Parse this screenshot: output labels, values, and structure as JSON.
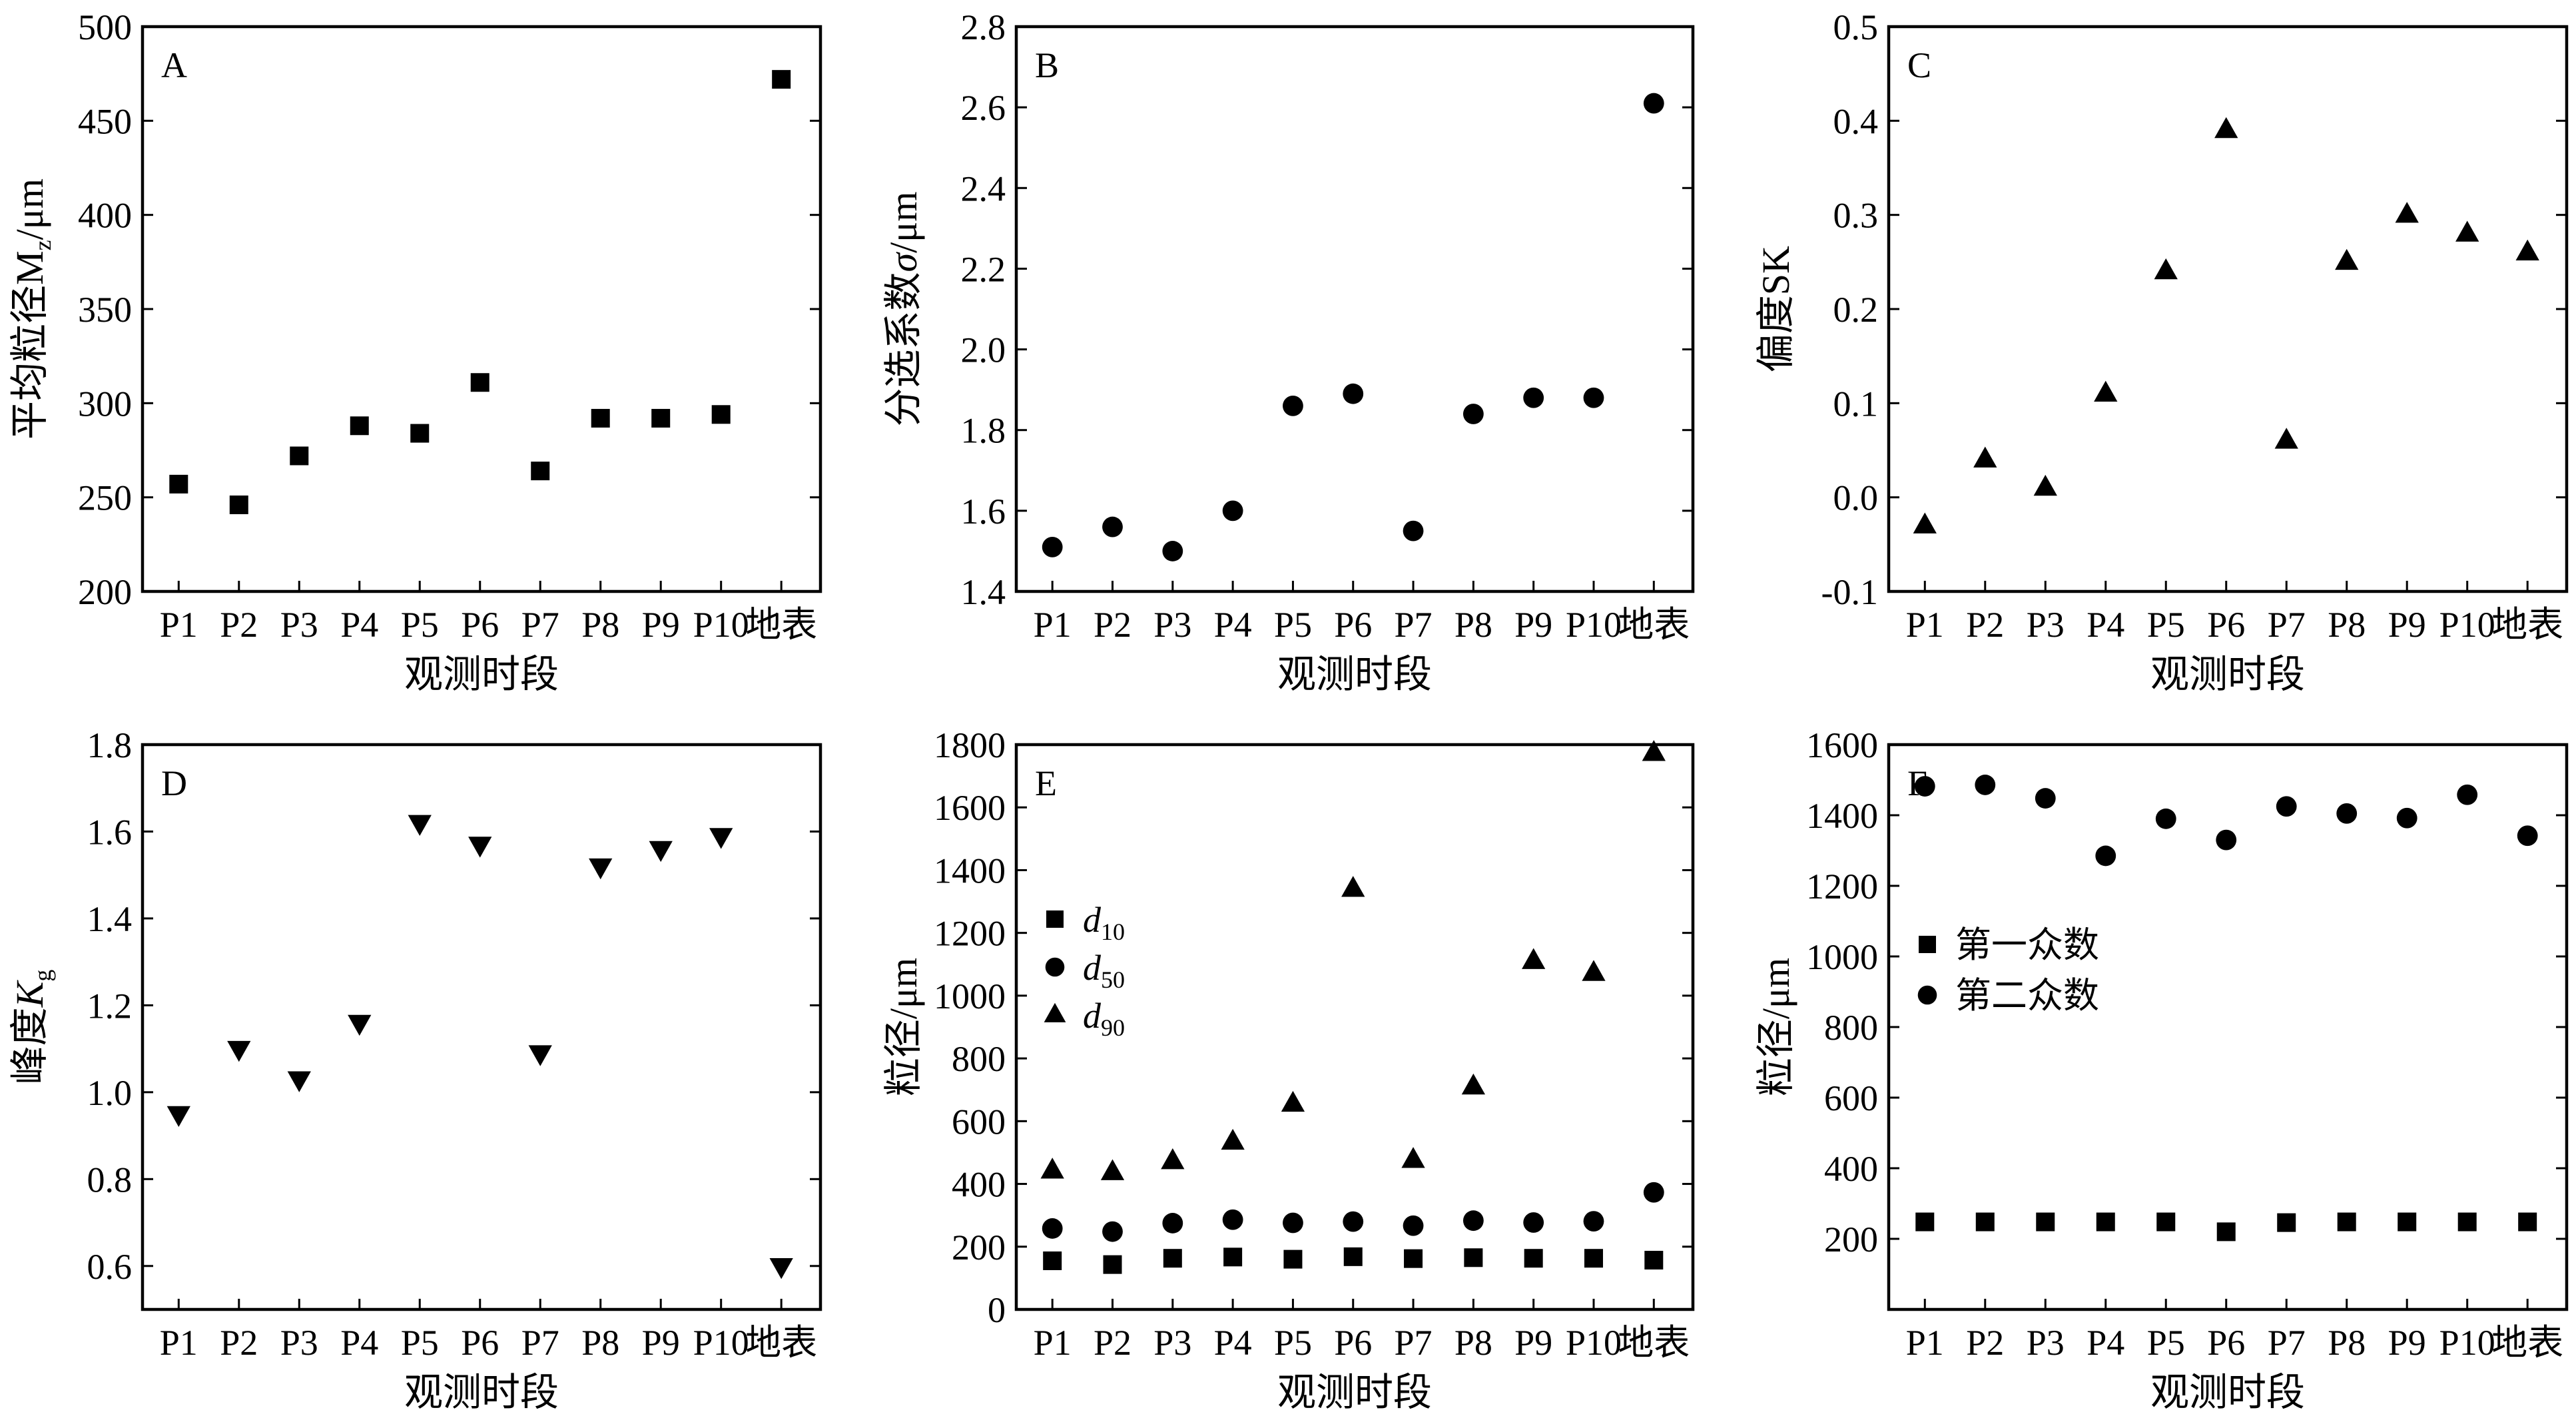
{
  "chart_data": [
    {
      "type": "scatter",
      "panel": "A",
      "ylabel_prefix": "平均粒径M",
      "ylabel_sub": "z",
      "ylabel_suffix": "/μm",
      "xlabel": "观测时段",
      "categories": [
        "P1",
        "P2",
        "P3",
        "P4",
        "P5",
        "P6",
        "P7",
        "P8",
        "P9",
        "P10",
        "地表"
      ],
      "ylim": [
        200,
        500
      ],
      "yticks": [
        "200",
        "250",
        "300",
        "350",
        "400",
        "450",
        "500"
      ],
      "series": [
        {
          "marker": "square",
          "values": [
            257,
            246,
            272,
            288,
            284,
            311,
            264,
            292,
            292,
            294,
            472
          ]
        }
      ]
    },
    {
      "type": "scatter",
      "panel": "B",
      "ylabel_prefix": "分选系数",
      "ylabel_italic": "σ",
      "ylabel_suffix": "/μm",
      "xlabel": "观测时段",
      "categories": [
        "P1",
        "P2",
        "P3",
        "P4",
        "P5",
        "P6",
        "P7",
        "P8",
        "P9",
        "P10",
        "地表"
      ],
      "ylim": [
        1.4,
        2.8
      ],
      "yticks": [
        "1.4",
        "1.6",
        "1.8",
        "2.0",
        "2.2",
        "2.4",
        "2.6",
        "2.8"
      ],
      "series": [
        {
          "marker": "circle",
          "values": [
            1.51,
            1.56,
            1.5,
            1.6,
            1.86,
            1.89,
            1.55,
            1.84,
            1.88,
            1.88,
            2.61
          ]
        }
      ]
    },
    {
      "type": "scatter",
      "panel": "C",
      "ylabel_prefix": "偏度SK",
      "xlabel": "观测时段",
      "categories": [
        "P1",
        "P2",
        "P3",
        "P4",
        "P5",
        "P6",
        "P7",
        "P8",
        "P9",
        "P10",
        "地表"
      ],
      "ylim": [
        -0.1,
        0.5
      ],
      "yticks": [
        "-0.1",
        "0.0",
        "0.1",
        "0.2",
        "0.3",
        "0.4",
        "0.5"
      ],
      "series": [
        {
          "marker": "triangle-up",
          "values": [
            -0.03,
            0.04,
            0.01,
            0.11,
            0.24,
            0.39,
            0.06,
            0.25,
            0.3,
            0.28,
            0.26
          ]
        }
      ]
    },
    {
      "type": "scatter",
      "panel": "D",
      "ylabel_prefix": "峰度",
      "ylabel_italic": "K",
      "ylabel_sub": "g",
      "xlabel": "观测时段",
      "categories": [
        "P1",
        "P2",
        "P3",
        "P4",
        "P5",
        "P6",
        "P7",
        "P8",
        "P9",
        "P10",
        "地表"
      ],
      "ylim": [
        0.5,
        1.8
      ],
      "yticks": [
        "0.6",
        "0.8",
        "1.0",
        "1.2",
        "1.4",
        "1.6",
        "1.8"
      ],
      "series": [
        {
          "marker": "triangle-down",
          "values": [
            0.95,
            1.1,
            1.03,
            1.16,
            1.62,
            1.57,
            1.09,
            1.52,
            1.56,
            1.59,
            0.6
          ]
        }
      ]
    },
    {
      "type": "scatter",
      "panel": "E",
      "ylabel_prefix": "粒径/μm",
      "xlabel": "观测时段",
      "categories": [
        "P1",
        "P2",
        "P3",
        "P4",
        "P5",
        "P6",
        "P7",
        "P8",
        "P9",
        "P10",
        "地表"
      ],
      "ylim": [
        0,
        1800
      ],
      "yticks": [
        "0",
        "200",
        "400",
        "600",
        "800",
        "1000",
        "1200",
        "1400",
        "1600",
        "1800"
      ],
      "legend_position": "upper-left",
      "series": [
        {
          "name": "d",
          "name_sub": "10",
          "marker": "square",
          "values": [
            155,
            143,
            163,
            167,
            160,
            168,
            162,
            165,
            163,
            163,
            157
          ]
        },
        {
          "name": "d",
          "name_sub": "50",
          "marker": "circle",
          "values": [
            258,
            248,
            275,
            286,
            276,
            280,
            267,
            283,
            277,
            281,
            373
          ]
        },
        {
          "name": "d",
          "name_sub": "90",
          "marker": "triangle-up",
          "values": [
            442,
            437,
            472,
            534,
            655,
            1340,
            476,
            710,
            1110,
            1072,
            1773
          ]
        }
      ]
    },
    {
      "type": "scatter",
      "panel": "F",
      "ylabel_prefix": "粒径/μm",
      "xlabel": "观测时段",
      "categories": [
        "P1",
        "P2",
        "P3",
        "P4",
        "P5",
        "P6",
        "P7",
        "P8",
        "P9",
        "P10",
        "地表"
      ],
      "ylim": [
        0,
        1600
      ],
      "yticks": [
        "200",
        "400",
        "600",
        "800",
        "1000",
        "1200",
        "1400",
        "1600"
      ],
      "legend_position": "upper-left",
      "series": [
        {
          "name": "第一众数",
          "marker": "square",
          "values": [
            248,
            248,
            248,
            248,
            248,
            220,
            246,
            248,
            248,
            248,
            248
          ]
        },
        {
          "name": "第二众数",
          "marker": "circle",
          "values": [
            1482,
            1486,
            1448,
            1285,
            1390,
            1330,
            1425,
            1405,
            1392,
            1458,
            1342
          ]
        }
      ]
    }
  ]
}
